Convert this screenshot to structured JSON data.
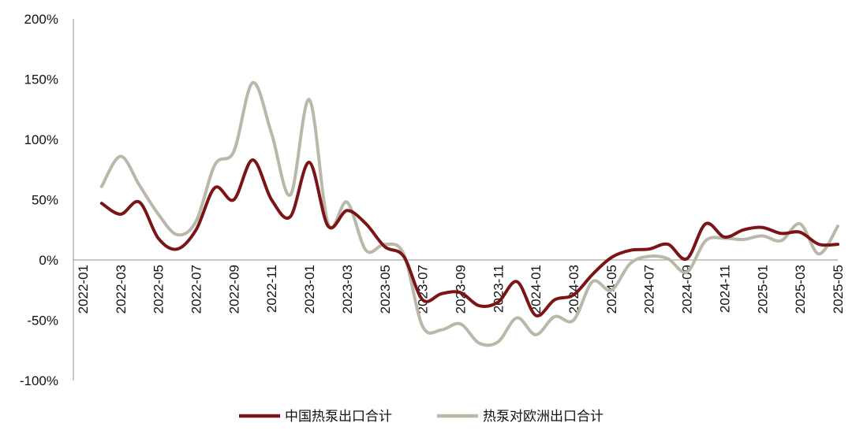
{
  "chart_data": {
    "type": "line",
    "title": "",
    "xlabel": "",
    "ylabel": "",
    "ylim": [
      -100,
      200
    ],
    "yticks": [
      "-100%",
      "-50%",
      "0%",
      "50%",
      "100%",
      "150%",
      "200%"
    ],
    "ytick_values": [
      -100,
      -50,
      0,
      50,
      100,
      150,
      200
    ],
    "x_tick_labels": [
      "2022-01",
      "2022-03",
      "2022-05",
      "2022-07",
      "2022-09",
      "2022-11",
      "2023-01",
      "2023-03",
      "2023-05",
      "2023-07",
      "2023-09",
      "2023-11",
      "2024-01",
      "2024-03",
      "2024-05",
      "2024-07",
      "2024-09",
      "2024-11",
      "2025-01",
      "2025-03",
      "2025-05"
    ],
    "x": [
      "2022-02",
      "2022-03",
      "2022-04",
      "2022-05",
      "2022-06",
      "2022-07",
      "2022-08",
      "2022-09",
      "2022-10",
      "2022-11",
      "2022-12",
      "2023-01",
      "2023-02",
      "2023-03",
      "2023-04",
      "2023-05",
      "2023-06",
      "2023-07",
      "2023-08",
      "2023-09",
      "2023-10",
      "2023-11",
      "2023-12",
      "2024-01",
      "2024-02",
      "2024-03",
      "2024-04",
      "2024-05",
      "2024-06",
      "2024-07",
      "2024-08",
      "2024-09",
      "2024-10",
      "2024-11",
      "2024-12",
      "2025-01",
      "2025-02",
      "2025-03",
      "2025-04",
      "2025-05"
    ],
    "series": [
      {
        "name": "中国热泵出口合计",
        "color": "#7b1416",
        "values": [
          47,
          38,
          48,
          18,
          9,
          25,
          60,
          50,
          83,
          50,
          36,
          81,
          28,
          41,
          30,
          11,
          3,
          -33,
          -28,
          -27,
          -38,
          -35,
          -18,
          -46,
          -33,
          -29,
          -12,
          2,
          8,
          9,
          13,
          1,
          30,
          19,
          25,
          27,
          22,
          23,
          13,
          13
        ]
      },
      {
        "name": "热泵对欧洲出口合计",
        "color": "#b9b8a9",
        "values": [
          61,
          86,
          62,
          38,
          21,
          32,
          79,
          90,
          147,
          105,
          54,
          133,
          30,
          48,
          8,
          13,
          5,
          -55,
          -58,
          -53,
          -69,
          -68,
          -48,
          -62,
          -47,
          -50,
          -18,
          -25,
          -3,
          3,
          1,
          -10,
          16,
          18,
          17,
          20,
          16,
          30,
          5,
          28
        ]
      }
    ],
    "legend_position": "bottom",
    "grid": false
  }
}
